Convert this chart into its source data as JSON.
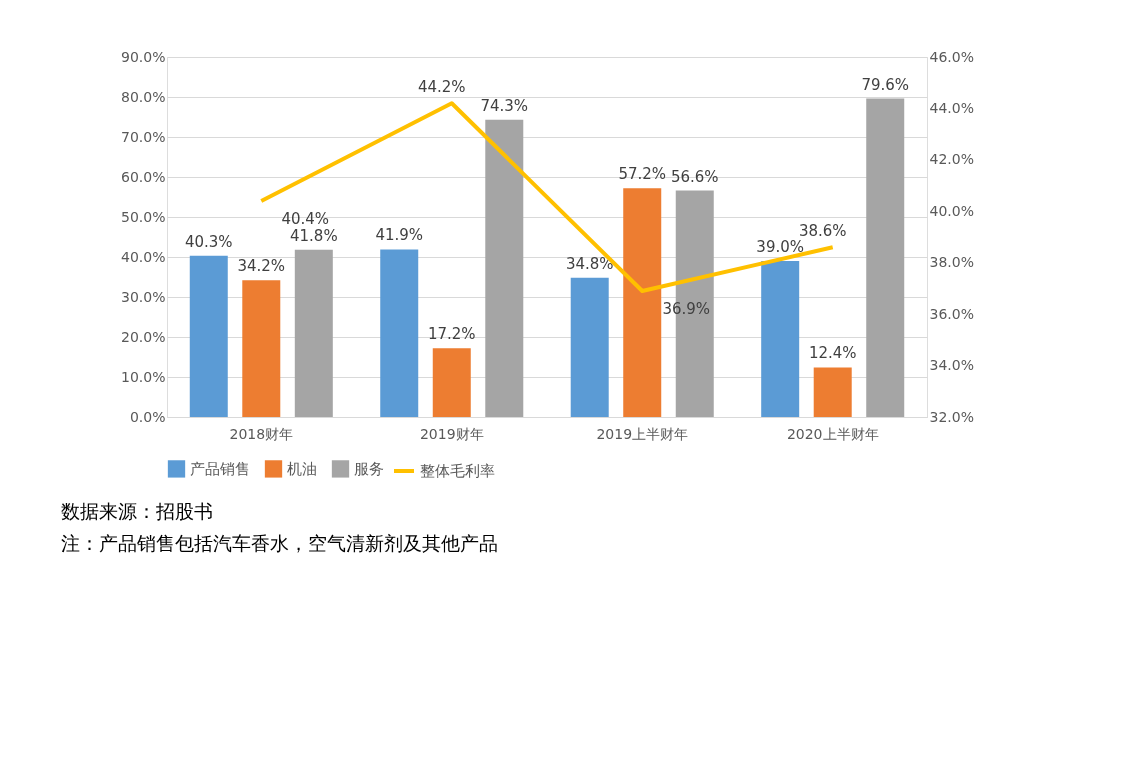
{
  "chart_data": {
    "type": "bar",
    "categories": [
      "2018财年",
      "2019财年",
      "2019上半财年",
      "2020上半财年"
    ],
    "series": [
      {
        "name": "产品销售",
        "color": "#5b9bd5",
        "values": [
          40.3,
          41.9,
          34.8,
          39.0
        ],
        "value_labels": [
          "40.3%",
          "41.9%",
          "34.8%",
          "39.0%"
        ]
      },
      {
        "name": "机油",
        "color": "#ed7d31",
        "values": [
          34.2,
          17.2,
          57.2,
          12.4
        ],
        "value_labels": [
          "34.2%",
          "17.2%",
          "57.2%",
          "12.4%"
        ]
      },
      {
        "name": "服务",
        "color": "#a5a5a5",
        "values": [
          41.8,
          74.3,
          56.6,
          79.6
        ],
        "value_labels": [
          "41.8%",
          "74.3%",
          "56.6%",
          "79.6%"
        ]
      },
      {
        "name": "整体毛利率",
        "color": "#ffc000",
        "type": "line",
        "axis": "y2",
        "values": [
          40.4,
          44.2,
          36.9,
          38.6
        ],
        "value_labels": [
          "40.4%",
          "44.2%",
          "36.9%",
          "38.6%"
        ]
      }
    ],
    "ylim": [
      0,
      90
    ],
    "yticks": [
      {
        "value": 0,
        "label": "0.0%"
      },
      {
        "value": 10,
        "label": "10.0%"
      },
      {
        "value": 20,
        "label": "20.0%"
      },
      {
        "value": 30,
        "label": "30.0%"
      },
      {
        "value": 40,
        "label": "40.0%"
      },
      {
        "value": 50,
        "label": "50.0%"
      },
      {
        "value": 60,
        "label": "60.0%"
      },
      {
        "value": 70,
        "label": "70.0%"
      },
      {
        "value": 80,
        "label": "80.0%"
      },
      {
        "value": 90,
        "label": "90.0%"
      }
    ],
    "y2lim": [
      32,
      46
    ],
    "y2ticks": [
      {
        "value": 32,
        "label": "32.0%"
      },
      {
        "value": 34,
        "label": "34.0%"
      },
      {
        "value": 36,
        "label": "36.0%"
      },
      {
        "value": 38,
        "label": "38.0%"
      },
      {
        "value": 40,
        "label": "40.0%"
      },
      {
        "value": 42,
        "label": "42.0%"
      },
      {
        "value": 44,
        "label": "44.0%"
      },
      {
        "value": 46,
        "label": "46.0%"
      }
    ],
    "grid": "y",
    "legend": "bottom",
    "marker": "none",
    "annotations": [
      "数据来源：招股书",
      "注：产品销售包括汽车香水，空气清新剂及其他产品"
    ]
  }
}
